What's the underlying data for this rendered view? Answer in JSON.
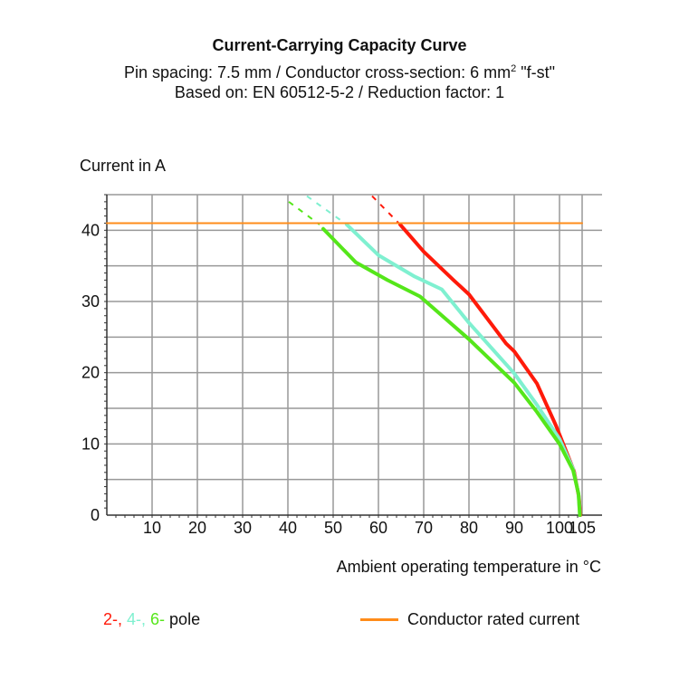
{
  "header": {
    "title": "Current-Carrying Capacity Curve",
    "subtitle_prefix": "Pin spacing: 7.5 mm / Conductor cross-section: 6 mm",
    "subtitle_sup": "2",
    "subtitle_suffix": " \"f-st\"",
    "subtitle2": "Based on: EN 60512-5-2 / Reduction factor: 1"
  },
  "legend": {
    "pole_2": "2-,",
    "pole_4": " 4-,",
    "pole_6": " 6-",
    "pole_word": " pole",
    "rated": "Conductor rated current",
    "colors": {
      "pole_2": "#ff1a0a",
      "pole_4": "#7ff0d0",
      "pole_6": "#55e61a",
      "rated": "#ff8c1a"
    }
  },
  "chart_data": {
    "type": "line",
    "title": "Current-Carrying Capacity Curve",
    "xlabel": "Ambient operating temperature in °C",
    "ylabel": "Current in A",
    "xlim": [
      0,
      105
    ],
    "ylim": [
      0,
      45
    ],
    "xticks": [
      10,
      20,
      30,
      40,
      50,
      60,
      70,
      80,
      90,
      100,
      105
    ],
    "yticks": [
      0,
      10,
      20,
      30,
      40
    ],
    "grid": true,
    "legend_placement": "bottom",
    "series": [
      {
        "name": "2- pole",
        "color": "#ff1a0a",
        "dashed": [
          [
            58.6,
            44.8
          ],
          [
            64.8,
            40.8
          ]
        ],
        "values": [
          [
            64.8,
            40.8
          ],
          [
            70,
            37
          ],
          [
            76.6,
            33
          ],
          [
            80,
            31
          ],
          [
            88.2,
            24.1
          ],
          [
            90,
            23
          ],
          [
            95,
            18.5
          ],
          [
            99.2,
            12.6
          ],
          [
            103.2,
            6.2
          ],
          [
            104.3,
            2.5
          ],
          [
            104.6,
            0
          ]
        ]
      },
      {
        "name": "4- pole",
        "color": "#7ff0d0",
        "dashed": [
          [
            44.2,
            44.8
          ],
          [
            53,
            40.8
          ]
        ],
        "values": [
          [
            53,
            40.8
          ],
          [
            60,
            36.5
          ],
          [
            68,
            33.5
          ],
          [
            74,
            31.7
          ],
          [
            80,
            27
          ],
          [
            90,
            19.9
          ],
          [
            95,
            15.5
          ],
          [
            100,
            10.7
          ],
          [
            103,
            6.5
          ],
          [
            104.2,
            3
          ],
          [
            104.5,
            0
          ]
        ]
      },
      {
        "name": "6- pole",
        "color": "#55e61a",
        "dashed": [
          [
            40.2,
            44
          ],
          [
            47,
            40.8
          ]
        ],
        "values": [
          [
            47.8,
            40.2
          ],
          [
            55,
            35.5
          ],
          [
            62,
            33
          ],
          [
            69.2,
            30.7
          ],
          [
            80,
            24.7
          ],
          [
            90,
            18.6
          ],
          [
            95,
            14.5
          ],
          [
            100,
            10
          ],
          [
            103,
            6.3
          ],
          [
            104.2,
            3
          ],
          [
            104.5,
            0
          ]
        ]
      },
      {
        "name": "Conductor rated current",
        "color": "#ff8c1a",
        "values": [
          [
            0,
            41
          ],
          [
            105,
            41
          ]
        ]
      }
    ]
  }
}
